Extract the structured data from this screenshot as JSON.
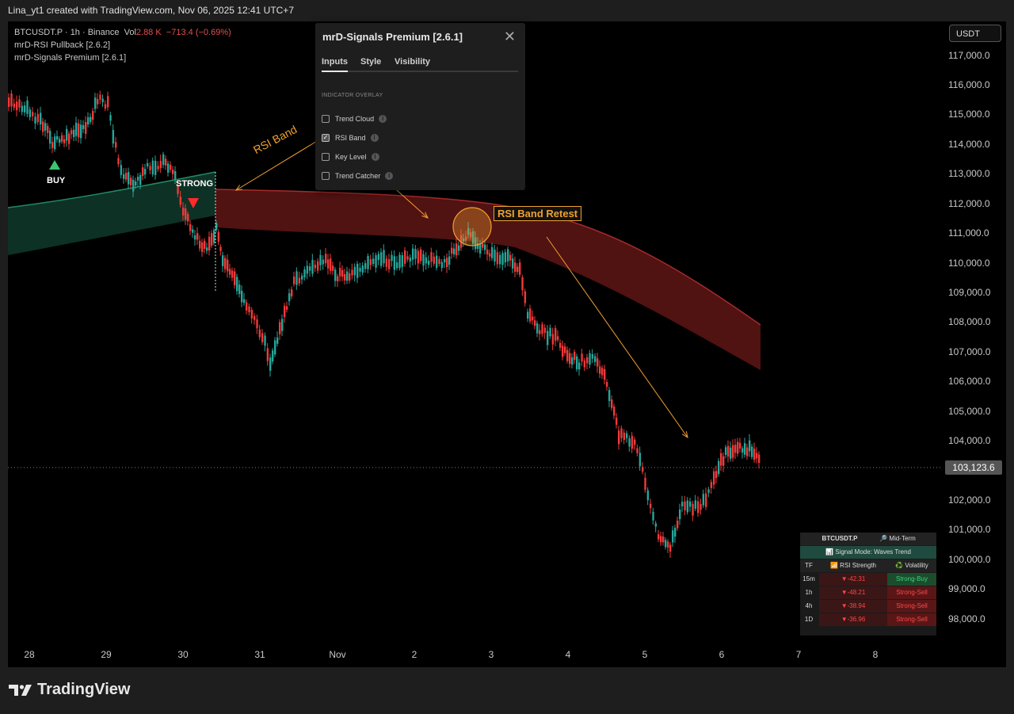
{
  "window": {
    "title": "Lina_yt1 created with TradingView.com, Nov 06, 2025 12:41 UTC+7"
  },
  "legend": {
    "symbol": "BTCUSDT.P · 1h · Binance",
    "vol_label": "Vol",
    "vol_value": "2.88 K",
    "change": "−713.4 (−0.69%)",
    "indicator1": "mrD-RSI Pullback [2.6.2]",
    "indicator2": "mrD-Signals Premium [2.6.1]"
  },
  "price_axis": {
    "unit": "USDT",
    "labels": [
      "117,000.0",
      "116,000.0",
      "115,000.0",
      "114,000.0",
      "113,000.0",
      "112,000.0",
      "111,000.0",
      "110,000.0",
      "109,000.0",
      "108,000.0",
      "107,000.0",
      "106,000.0",
      "105,000.0",
      "104,000.0",
      "102,000.0",
      "101,000.0",
      "100,000.0",
      "99,000.0",
      "98,000.0"
    ],
    "last_price": "103,123.6"
  },
  "time_axis": {
    "labels": [
      "28",
      "29",
      "30",
      "31",
      "Nov",
      "2",
      "3",
      "4",
      "5",
      "6",
      "7",
      "8"
    ]
  },
  "annotations": {
    "buy": "BUY",
    "strong": "STRONG",
    "rsi_band": "RSI Band",
    "rsi_band_retest": "RSI Band Retest"
  },
  "dialog": {
    "title": "mrD-Signals Premium [2.6.1]",
    "tabs": [
      {
        "label": "Inputs"
      },
      {
        "label": "Style"
      },
      {
        "label": "Visibility"
      }
    ],
    "active_tab": "Inputs",
    "section": "INDICATOR OVERLAY",
    "options": [
      {
        "label": "Trend Cloud",
        "checked": false
      },
      {
        "label": "RSI Band",
        "checked": true
      },
      {
        "label": "Key Level",
        "checked": false
      },
      {
        "label": "Trend Catcher",
        "checked": false
      }
    ]
  },
  "signal_table": {
    "symbol": "BTCUSDT.P",
    "horizon": "🔎 Mid-Term",
    "mode": "📊 Signal Mode: Waves Trend",
    "headers": [
      "TF",
      "📶 RSI Strength",
      "♻️ Volatility"
    ],
    "rows": [
      {
        "tf": "15m",
        "rsi": "▼-42.31",
        "vol": "Strong-Buy"
      },
      {
        "tf": "1h",
        "rsi": "▼-48.21",
        "vol": "Strong-Sell"
      },
      {
        "tf": "4h",
        "rsi": "▼-38.94",
        "vol": "Strong-Sell"
      },
      {
        "tf": "1D",
        "rsi": "▼-36.96",
        "vol": "Strong-Sell"
      }
    ]
  },
  "brand": {
    "name": "TradingView"
  },
  "colors": {
    "up": "#26a69a",
    "down": "#ef3a3a",
    "accent": "#f0a030",
    "band_red": "#6e1a1a",
    "band_green": "#0f3a2c"
  }
}
